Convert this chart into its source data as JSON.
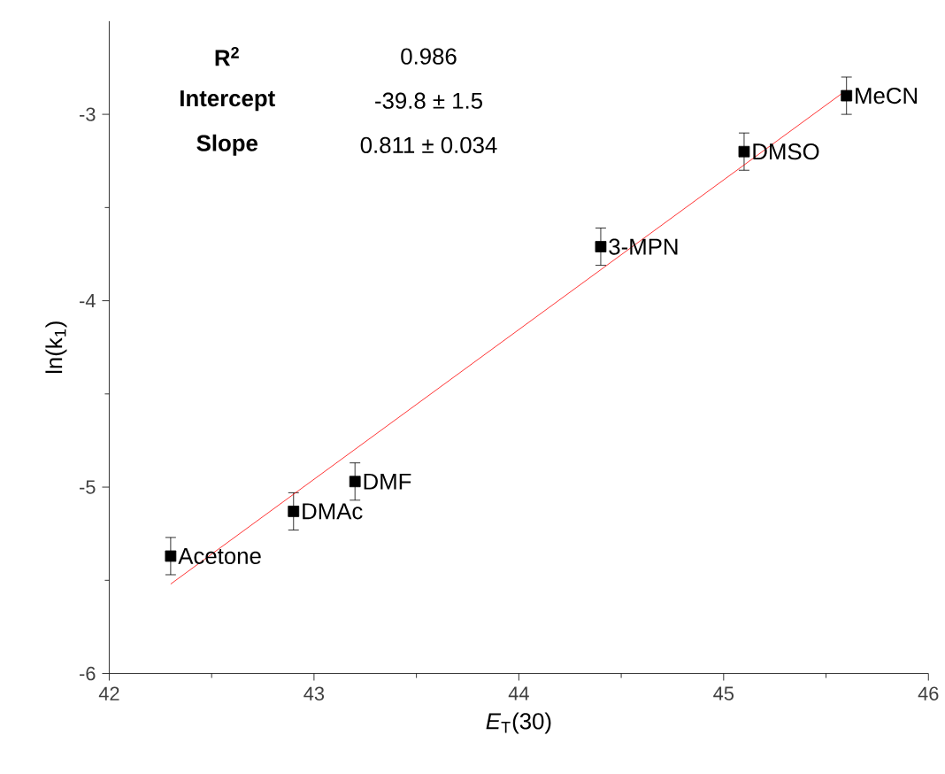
{
  "chart_data": {
    "type": "scatter",
    "xlabel": "*E*$_{T}$(30)",
    "ylabel": "ln(k$_{1}$)",
    "xlim": [
      42,
      46
    ],
    "ylim": [
      -6,
      -2.5
    ],
    "xticks": [
      42,
      43,
      44,
      45,
      46
    ],
    "yticks": [
      -6,
      -5,
      -4,
      -3
    ],
    "marker": "square",
    "series": [
      {
        "color": "#000000",
        "x": [
          42.3,
          42.9,
          43.2,
          44.4,
          45.1,
          45.6
        ],
        "values": [
          -5.37,
          -5.13,
          -4.97,
          -3.71,
          -3.2,
          -2.9
        ],
        "errors": [
          0.1,
          0.1,
          0.1,
          0.1,
          0.1,
          0.1
        ]
      },
      {
        "type": "line",
        "color": "#ff0000",
        "marker": "none",
        "line_style": "solid",
        "x": [
          42.3,
          45.6
        ],
        "values": [
          -5.52,
          -2.87
        ]
      }
    ],
    "annotations": [
      "**R$^{2}$**",
      "0.986",
      "**Intercept**",
      "-39.8 ± 1.5",
      "**Slope**",
      "0.811 ± 0.034",
      {
        "text": "Acetone",
        "x": 42.3,
        "y": -5.37
      },
      {
        "text": "DMAc",
        "x": 42.9,
        "y": -5.13
      },
      {
        "text": "DMF",
        "x": 43.2,
        "y": -4.97
      },
      {
        "text": "3-MPN",
        "x": 44.4,
        "y": -3.71
      },
      {
        "text": "DMSO",
        "x": 45.1,
        "y": -3.2
      },
      {
        "text": "MeCN",
        "x": 45.6,
        "y": -2.9
      }
    ]
  }
}
